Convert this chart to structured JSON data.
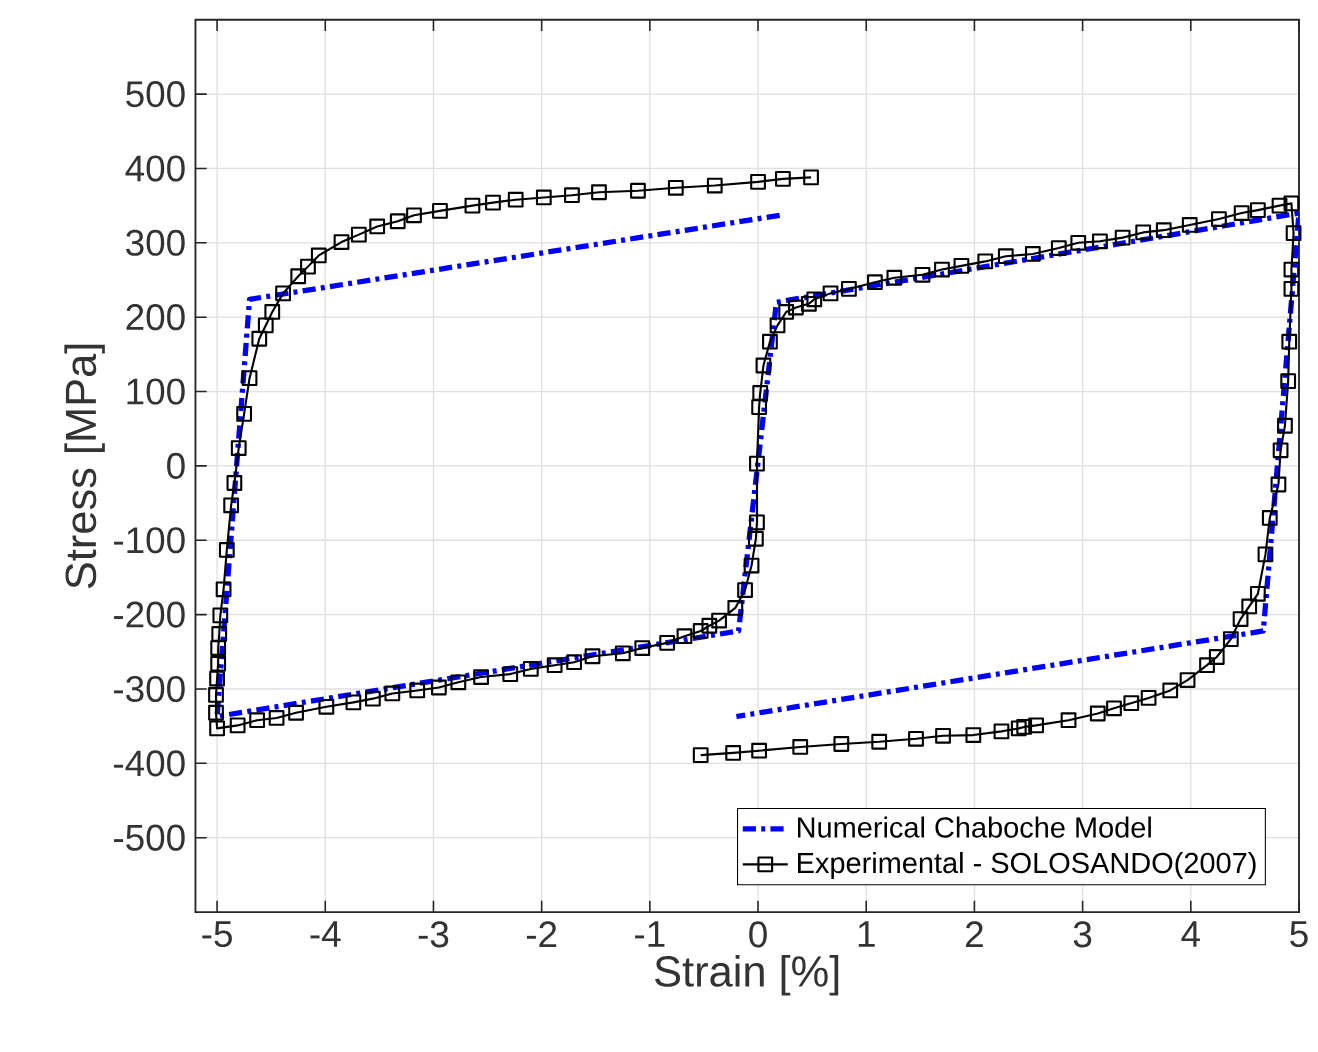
{
  "chart_data": {
    "type": "line",
    "xlabel": "Strain [%]",
    "ylabel": "Stress [MPa]",
    "xlim": [
      -5.2,
      5
    ],
    "ylim": [
      -600,
      600
    ],
    "xticks": [
      -5,
      -4,
      -3,
      -2,
      -1,
      0,
      1,
      2,
      3,
      4,
      5
    ],
    "yticks": [
      -500,
      -400,
      -300,
      -200,
      -100,
      0,
      100,
      200,
      300,
      400,
      500
    ],
    "grid": true,
    "legend": "bottom right",
    "series": [
      {
        "name": "Numerical Chaboche Model",
        "color": "#0000ff",
        "line_style": "dashdot",
        "marker": "none",
        "x": [
          0.2,
          -4.7,
          -5.0,
          -0.18,
          0.17,
          5.0,
          4.67,
          -0.2
        ],
        "values": [
          337,
          224,
          -337,
          -222,
          220,
          340,
          -222,
          -337
        ]
      },
      {
        "name": "Experimental - SOLOSANDO(2007)",
        "color": "#000000",
        "line_style": "solid",
        "marker": "square",
        "x": [
          0.49,
          0.23,
          0,
          -0.4,
          -0.76,
          -1.11,
          -1.47,
          -1.72,
          -1.98,
          -2.24,
          -2.45,
          -2.64,
          -2.94,
          -3.18,
          -3.33,
          -3.52,
          -3.69,
          -3.85,
          -4.06,
          -4.16,
          -4.25,
          -4.39,
          -4.49,
          -4.55,
          -4.61,
          -4.7,
          -4.75,
          -4.8,
          -4.84,
          -4.87,
          -4.91,
          -4.94,
          -4.97,
          -4.98,
          -4.99,
          -4.99,
          -5.0,
          -5.01,
          -5.01,
          -5.0,
          -4.81,
          -4.63,
          -4.45,
          -4.27,
          -3.99,
          -3.74,
          -3.56,
          -3.38,
          -3.15,
          -2.95,
          -2.77,
          -2.56,
          -2.29,
          -2.1,
          -1.88,
          -1.7,
          -1.53,
          -1.25,
          -1.07,
          -0.84,
          -0.68,
          -0.53,
          -0.45,
          -0.36,
          -0.21,
          -0.12,
          -0.06,
          -0.02,
          -0.01,
          -0.01,
          0.01,
          0.02,
          0.05,
          0.11,
          0.18,
          0.26,
          0.35,
          0.47,
          0.52,
          0.67,
          0.84,
          1.08,
          1.26,
          1.52,
          1.7,
          1.88,
          2.1,
          2.29,
          2.54,
          2.78,
          2.96,
          3.16,
          3.37,
          3.56,
          3.75,
          3.99,
          4.26,
          4.47,
          4.62,
          4.82,
          4.93,
          4.95,
          4.93,
          4.93,
          4.91,
          4.9,
          4.87,
          4.83,
          4.81,
          4.73,
          4.69,
          4.62,
          4.54,
          4.46,
          4.37,
          4.24,
          4.15,
          3.97,
          3.81,
          3.61,
          3.45,
          3.29,
          3.14,
          2.87,
          2.57,
          2.46,
          2.41,
          2.25,
          1.99,
          1.71,
          1.46,
          1.12,
          0.77,
          0.39,
          0.01,
          -0.23,
          -0.53
        ],
        "values": [
          388,
          386,
          382,
          377,
          374,
          370,
          368,
          364,
          361,
          358,
          354,
          350,
          343,
          337,
          329,
          322,
          311,
          301,
          283,
          268,
          255,
          232,
          207,
          189,
          171,
          118,
          70,
          24,
          -23,
          -53,
          -113,
          -166,
          -201,
          -226,
          -245,
          -266,
          -286,
          -308,
          -332,
          -353,
          -349,
          -342,
          -339,
          -332,
          -324,
          -318,
          -313,
          -306,
          -302,
          -298,
          -291,
          -284,
          -280,
          -273,
          -268,
          -264,
          -256,
          -252,
          -245,
          -238,
          -229,
          -222,
          -215,
          -208,
          -191,
          -167,
          -134,
          -98,
          -76,
          3,
          79,
          98,
          135,
          167,
          189,
          207,
          213,
          218,
          224,
          232,
          238,
          247,
          253,
          257,
          264,
          269,
          275,
          282,
          285,
          293,
          300,
          302,
          307,
          314,
          317,
          324,
          332,
          340,
          344,
          350,
          353,
          313,
          264,
          238,
          167,
          114,
          54,
          21,
          -25,
          -70,
          -119,
          -172,
          -189,
          -206,
          -233,
          -257,
          -268,
          -288,
          -302,
          -312,
          -319,
          -326,
          -333,
          -342,
          -349,
          -351,
          -353,
          -357,
          -362,
          -363,
          -367,
          -371,
          -374,
          -378,
          -383,
          -386,
          -389
        ]
      }
    ]
  }
}
